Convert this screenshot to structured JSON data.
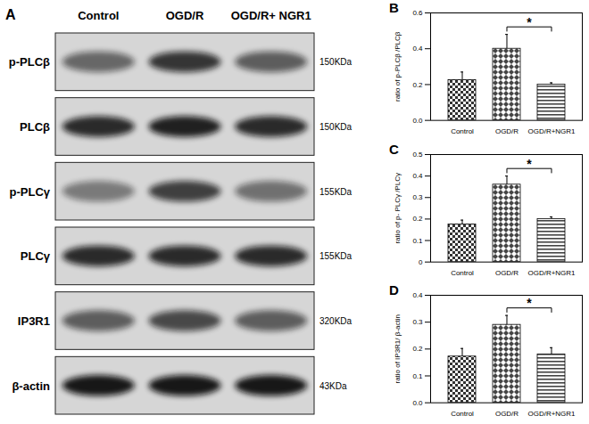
{
  "panel_a": {
    "label": "A",
    "columns": [
      "Control",
      "OGD/R",
      "OGD/R+ NGR1"
    ],
    "rows": [
      {
        "name": "p-PLCβ",
        "size": "150KDa"
      },
      {
        "name": "PLCβ",
        "size": "150KDa"
      },
      {
        "name": "p-PLCγ",
        "size": "155KDa"
      },
      {
        "name": "PLCγ",
        "size": "155KDa"
      },
      {
        "name": "IP3R1",
        "size": "320KDa"
      },
      {
        "name": "β-actin",
        "size": "43KDa"
      }
    ]
  },
  "chart_data": [
    {
      "type": "bar",
      "title": "B",
      "y_label": "ratio of p-PLCβ /PLCβ",
      "categories": [
        "Control",
        "OGD/R",
        "OGD/R+NGR1"
      ],
      "values": [
        0.225,
        0.4,
        0.2
      ],
      "errors": [
        0.045,
        0.08,
        0.01
      ],
      "ylim": [
        0,
        0.6
      ],
      "yticks": [
        {
          "value": 0,
          "label": "0.0"
        },
        0.2,
        0.4,
        0.6
      ],
      "annotations": [
        {
          "text": "*",
          "from": "OGD/R",
          "to": "OGD/R+NGR1"
        }
      ]
    },
    {
      "type": "bar",
      "title": "C",
      "y_label": "ratio of p- PLCγ /PLCγ",
      "categories": [
        "Control",
        "OGD/R",
        "OGD/R+NGR1"
      ],
      "values": [
        0.175,
        0.36,
        0.2
      ],
      "errors": [
        0.02,
        0.04,
        0.01
      ],
      "ylim": [
        0,
        0.5
      ],
      "yticks": [
        0,
        0.1,
        0.2,
        0.3,
        0.4,
        0.5
      ],
      "annotations": [
        {
          "text": "*",
          "from": "OGD/R",
          "to": "OGD/R+NGR1"
        }
      ]
    },
    {
      "type": "bar",
      "title": "D",
      "y_label": "ratio of IP3R1/ β-actin",
      "categories": [
        "Control",
        "OGD/R",
        "OGD/R+NGR1"
      ],
      "values": [
        0.172,
        0.29,
        0.18
      ],
      "errors": [
        0.03,
        0.035,
        0.025
      ],
      "ylim": [
        0,
        0.4
      ],
      "yticks": [
        {
          "value": 0,
          "label": "0.0"
        },
        0.1,
        0.2,
        0.3,
        0.4
      ],
      "annotations": [
        {
          "text": "*",
          "from": "OGD/R",
          "to": "OGD/R+NGR1"
        }
      ]
    }
  ]
}
